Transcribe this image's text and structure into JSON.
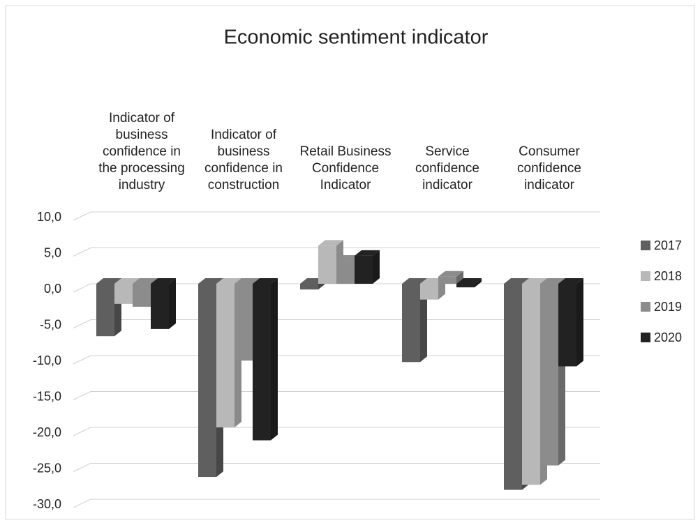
{
  "chart_data": {
    "type": "bar3d",
    "title": "Economic sentiment indicator",
    "categories": [
      "Indicator of business confidence in the processing industry",
      "Indicator of business confidence in construction",
      "Retail Business Confidence Indicator",
      "Service confidence indicator",
      "Consumer confidence indicator"
    ],
    "series": [
      {
        "name": "2017",
        "color": "#5f5f5f",
        "values": [
          -7.3,
          -26.9,
          -0.8,
          -10.9,
          -28.7
        ]
      },
      {
        "name": "2018",
        "color": "#b8b8b8",
        "values": [
          -2.8,
          -20.0,
          5.3,
          -2.2,
          -28.0
        ]
      },
      {
        "name": "2019",
        "color": "#8c8c8c",
        "values": [
          -3.2,
          -10.7,
          3.2,
          1.0,
          -25.3
        ]
      },
      {
        "name": "2020",
        "color": "#222222",
        "values": [
          -6.3,
          -21.8,
          3.9,
          -0.5,
          -11.5
        ]
      }
    ],
    "ylim": [
      -30,
      10
    ],
    "yticks": [
      {
        "value": 10,
        "label": "10,0"
      },
      {
        "value": 5,
        "label": "5,0"
      },
      {
        "value": 0,
        "label": "0,0"
      },
      {
        "value": -5,
        "label": "-5,0"
      },
      {
        "value": -10,
        "label": "-10,0"
      },
      {
        "value": -15,
        "label": "-15,0"
      },
      {
        "value": -20,
        "label": "-20,0"
      },
      {
        "value": -25,
        "label": "-25,0"
      },
      {
        "value": -30,
        "label": "-30,0"
      }
    ],
    "grid": true,
    "legend": "right"
  }
}
